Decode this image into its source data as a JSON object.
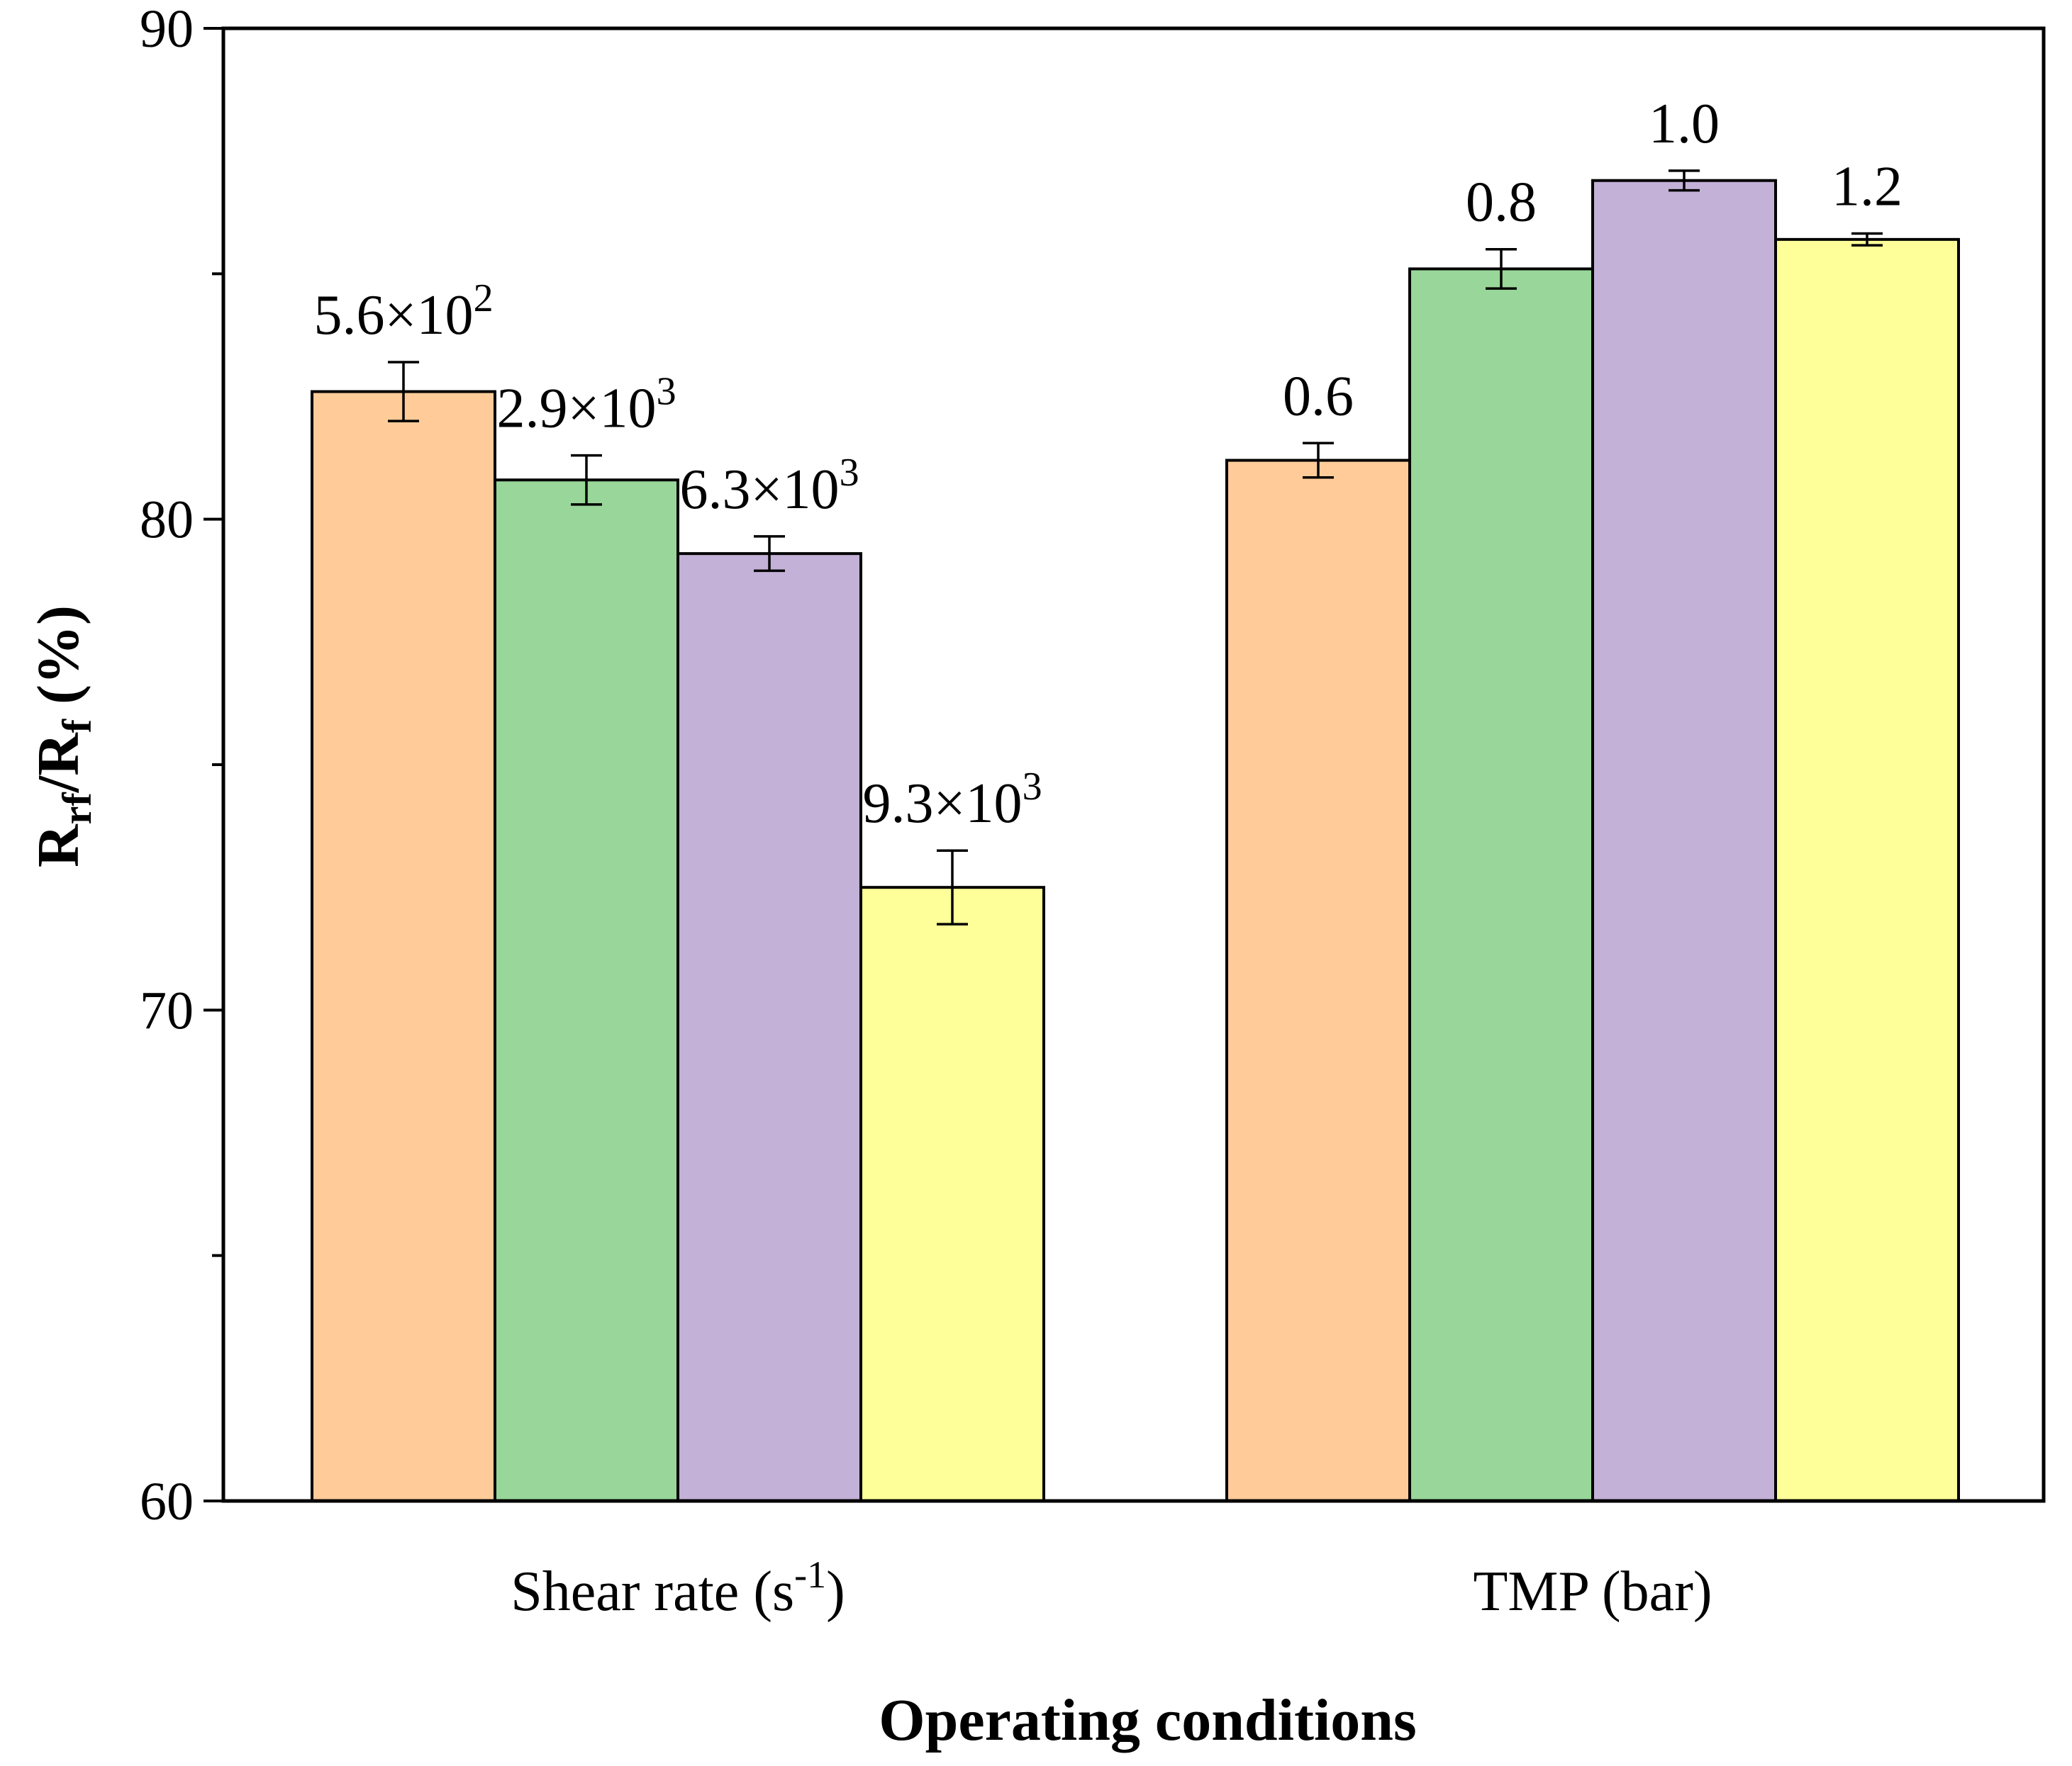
{
  "chart_data": {
    "type": "bar",
    "title": "",
    "xlabel": "Operating conditions",
    "ylabel": {
      "base": "R",
      "sub1": "rf",
      "mid": "/R",
      "sub2": "f",
      "suffix": " (%)"
    },
    "ylim": [
      60,
      90
    ],
    "yticks": [
      60,
      70,
      80,
      90
    ],
    "ytick_labels": [
      "60",
      "70",
      "80",
      "90"
    ],
    "groups": [
      {
        "name": "Shear rate (s-1)",
        "label": {
          "main": "Shear rate (s",
          "sup": "-1",
          "close": ")"
        },
        "bars": [
          {
            "label": {
              "main": "5.6×10",
              "sup": "2"
            },
            "value": 82.6,
            "error": 0.6,
            "color": "#FFCC99"
          },
          {
            "label": {
              "main": "2.9×10",
              "sup": "3"
            },
            "value": 80.8,
            "error": 0.5,
            "color": "#99D699"
          },
          {
            "label": {
              "main": "6.3×10",
              "sup": "3"
            },
            "value": 79.3,
            "error": 0.35,
            "color": "#C3B1D7"
          },
          {
            "label": {
              "main": "9.3×10",
              "sup": "3"
            },
            "value": 72.5,
            "error": 0.75,
            "color": "#FFFF99"
          }
        ]
      },
      {
        "name": "TMP (bar)",
        "label": {
          "main": "TMP (bar)",
          "sup": "",
          "close": ""
        },
        "bars": [
          {
            "label": {
              "main": "0.6",
              "sup": ""
            },
            "value": 81.2,
            "error": 0.35,
            "color": "#FFCC99"
          },
          {
            "label": {
              "main": "0.8",
              "sup": ""
            },
            "value": 85.1,
            "error": 0.4,
            "color": "#99D699"
          },
          {
            "label": {
              "main": "1.0",
              "sup": ""
            },
            "value": 86.9,
            "error": 0.2,
            "color": "#C3B1D7"
          },
          {
            "label": {
              "main": "1.2",
              "sup": ""
            },
            "value": 85.7,
            "error": 0.12,
            "color": "#FFFF99"
          }
        ]
      }
    ]
  }
}
